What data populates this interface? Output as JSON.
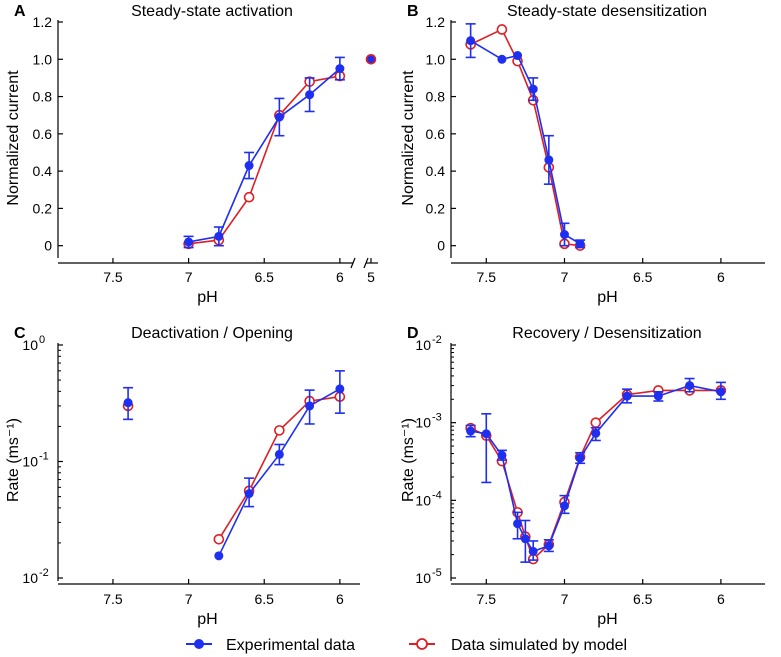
{
  "figure": {
    "colors": {
      "experimental": "#1f2ff0",
      "simulated": "#dd2025",
      "axis": "#000000"
    },
    "legend": {
      "experimental_label": "Experimental data",
      "simulated_label": "Data simulated by model"
    }
  },
  "chart_data": [
    {
      "panel": "A",
      "title": "Steady-state activation",
      "type": "line",
      "xlabel": "pH",
      "ylabel": "Normalized current",
      "x_reversed": true,
      "xlim": [
        7.85,
        5.9
      ],
      "ylim": [
        -0.05,
        1.2
      ],
      "y_scale": "linear",
      "x_ticks": [
        {
          "v": 7.5,
          "label": "7.5"
        },
        {
          "v": 7,
          "label": "7"
        },
        {
          "v": 6.5,
          "label": "6.5"
        },
        {
          "v": 6,
          "label": "6"
        }
      ],
      "y_ticks": [
        {
          "v": 0,
          "label": "0"
        },
        {
          "v": 0.2,
          "label": "0.2"
        },
        {
          "v": 0.4,
          "label": "0.4"
        },
        {
          "v": 0.6,
          "label": "0.6"
        },
        {
          "v": 0.8,
          "label": "0.8"
        },
        {
          "v": 1.0,
          "label": "1.0"
        },
        {
          "v": 1.2,
          "label": "1.2"
        }
      ],
      "extra_point": {
        "label": "5",
        "exp": 1.0,
        "sim": 1.0
      },
      "series": [
        {
          "name": "Experimental data",
          "x": [
            7.0,
            6.8,
            6.6,
            6.4,
            6.2,
            6.0
          ],
          "y": [
            0.02,
            0.05,
            0.43,
            0.69,
            0.81,
            0.95
          ],
          "err": [
            0.03,
            0.05,
            0.07,
            0.1,
            0.09,
            0.06
          ]
        },
        {
          "name": "Data simulated by model",
          "x": [
            7.0,
            6.8,
            6.6,
            6.4,
            6.2,
            6.0
          ],
          "y": [
            0.01,
            0.03,
            0.26,
            0.7,
            0.88,
            0.91
          ]
        }
      ]
    },
    {
      "panel": "B",
      "title": "Steady-state desensitization",
      "type": "line",
      "xlabel": "pH",
      "ylabel": "Normalized current",
      "x_reversed": true,
      "xlim": [
        7.7,
        5.75
      ],
      "ylim": [
        -0.05,
        1.2
      ],
      "y_scale": "linear",
      "x_ticks": [
        {
          "v": 7.5,
          "label": "7.5"
        },
        {
          "v": 7,
          "label": "7"
        },
        {
          "v": 6.5,
          "label": "6.5"
        },
        {
          "v": 6,
          "label": "6"
        }
      ],
      "y_ticks": [
        {
          "v": 0,
          "label": "0"
        },
        {
          "v": 0.2,
          "label": "0.2"
        },
        {
          "v": 0.4,
          "label": "0.4"
        },
        {
          "v": 0.6,
          "label": "0.6"
        },
        {
          "v": 0.8,
          "label": "0.8"
        },
        {
          "v": 1.0,
          "label": "1.0"
        },
        {
          "v": 1.2,
          "label": "1.2"
        }
      ],
      "series": [
        {
          "name": "Experimental data",
          "x": [
            7.6,
            7.4,
            7.3,
            7.2,
            7.1,
            7.0,
            6.9
          ],
          "y": [
            1.1,
            1.0,
            1.02,
            0.84,
            0.46,
            0.06,
            0.01
          ],
          "err": [
            0.09,
            0,
            0,
            0.06,
            0.13,
            0.06,
            0.02
          ]
        },
        {
          "name": "Data simulated by model",
          "x": [
            7.6,
            7.4,
            7.3,
            7.2,
            7.1,
            7.0,
            6.9
          ],
          "y": [
            1.08,
            1.16,
            0.99,
            0.78,
            0.42,
            0.01,
            0.0
          ]
        }
      ]
    },
    {
      "panel": "C",
      "title": "Deactivation / Opening",
      "type": "line",
      "xlabel": "pH",
      "ylabel": "Rate (ms⁻¹)",
      "x_reversed": true,
      "xlim": [
        7.85,
        5.9
      ],
      "ylim": [
        0.01,
        1
      ],
      "y_scale": "log",
      "x_ticks": [
        {
          "v": 7.5,
          "label": "7.5"
        },
        {
          "v": 7,
          "label": "7"
        },
        {
          "v": 6.5,
          "label": "6.5"
        },
        {
          "v": 6,
          "label": "6"
        }
      ],
      "y_ticks": [
        {
          "v": 0.01,
          "label": "10",
          "sup": "-2"
        },
        {
          "v": 0.1,
          "label": "10",
          "sup": "-1"
        },
        {
          "v": 1,
          "label": "10",
          "sup": "0"
        }
      ],
      "series": [
        {
          "name": "Experimental data",
          "x": [
            7.4,
            6.8,
            6.6,
            6.4,
            6.2,
            6.0
          ],
          "y": [
            0.32,
            0.0155,
            0.053,
            0.115,
            0.3,
            0.42
          ],
          "err_lo": [
            0.23,
            null,
            0.041,
            0.094,
            0.21,
            0.26
          ],
          "err_hi": [
            0.43,
            null,
            0.072,
            0.14,
            0.41,
            0.6
          ],
          "connect_from": 1
        },
        {
          "name": "Data simulated by model",
          "x": [
            7.4,
            6.8,
            6.6,
            6.4,
            6.2,
            6.0
          ],
          "y": [
            0.3,
            0.0215,
            0.056,
            0.185,
            0.33,
            0.36
          ],
          "connect_from": 1
        }
      ]
    },
    {
      "panel": "D",
      "title": "Recovery / Desensitization",
      "type": "line",
      "xlabel": "pH",
      "ylabel": "Rate (ms⁻¹)",
      "x_reversed": true,
      "xlim": [
        7.7,
        5.75
      ],
      "ylim": [
        1e-05,
        0.01
      ],
      "y_scale": "log",
      "x_ticks": [
        {
          "v": 7.5,
          "label": "7.5"
        },
        {
          "v": 7,
          "label": "7"
        },
        {
          "v": 6.5,
          "label": "6.5"
        },
        {
          "v": 6,
          "label": "6"
        }
      ],
      "y_ticks": [
        {
          "v": 1e-05,
          "label": "10",
          "sup": "-5"
        },
        {
          "v": 0.0001,
          "label": "10",
          "sup": "-4"
        },
        {
          "v": 0.001,
          "label": "10",
          "sup": "-3"
        },
        {
          "v": 0.01,
          "label": "10",
          "sup": "-2"
        }
      ],
      "series": [
        {
          "name": "Experimental data",
          "x": [
            7.6,
            7.5,
            7.4,
            7.3,
            7.25,
            7.2,
            7.1,
            7.0,
            6.9,
            6.8,
            6.6,
            6.4,
            6.2,
            6.0
          ],
          "y": [
            0.00078,
            0.00072,
            0.00038,
            5e-05,
            3.2e-05,
            2.2e-05,
            2.6e-05,
            8.5e-05,
            0.00035,
            0.00073,
            0.0022,
            0.0022,
            0.003,
            0.0025
          ],
          "err_lo": [
            0.00066,
            0.00017,
            0.00033,
            3.2e-05,
            1.6e-05,
            1.7e-05,
            2.2e-05,
            6.8e-05,
            0.0003,
            0.00059,
            0.0018,
            0.0019,
            0.0025,
            0.002
          ],
          "err_hi": [
            0.00092,
            0.0013,
            0.00044,
            7e-05,
            5.5e-05,
            3e-05,
            3.1e-05,
            0.000115,
            0.00041,
            0.00086,
            0.0027,
            0.0025,
            0.0037,
            0.0033
          ]
        },
        {
          "name": "Data simulated by model",
          "x": [
            7.6,
            7.5,
            7.4,
            7.3,
            7.25,
            7.2,
            7.1,
            7.0,
            6.9,
            6.8,
            6.6,
            6.4,
            6.2,
            6.0
          ],
          "y": [
            0.00085,
            0.00068,
            0.00032,
            7e-05,
            3.4e-05,
            1.75e-05,
            2.7e-05,
            9.5e-05,
            0.00036,
            0.001,
            0.0023,
            0.0026,
            0.0026,
            0.0026
          ]
        }
      ]
    }
  ]
}
